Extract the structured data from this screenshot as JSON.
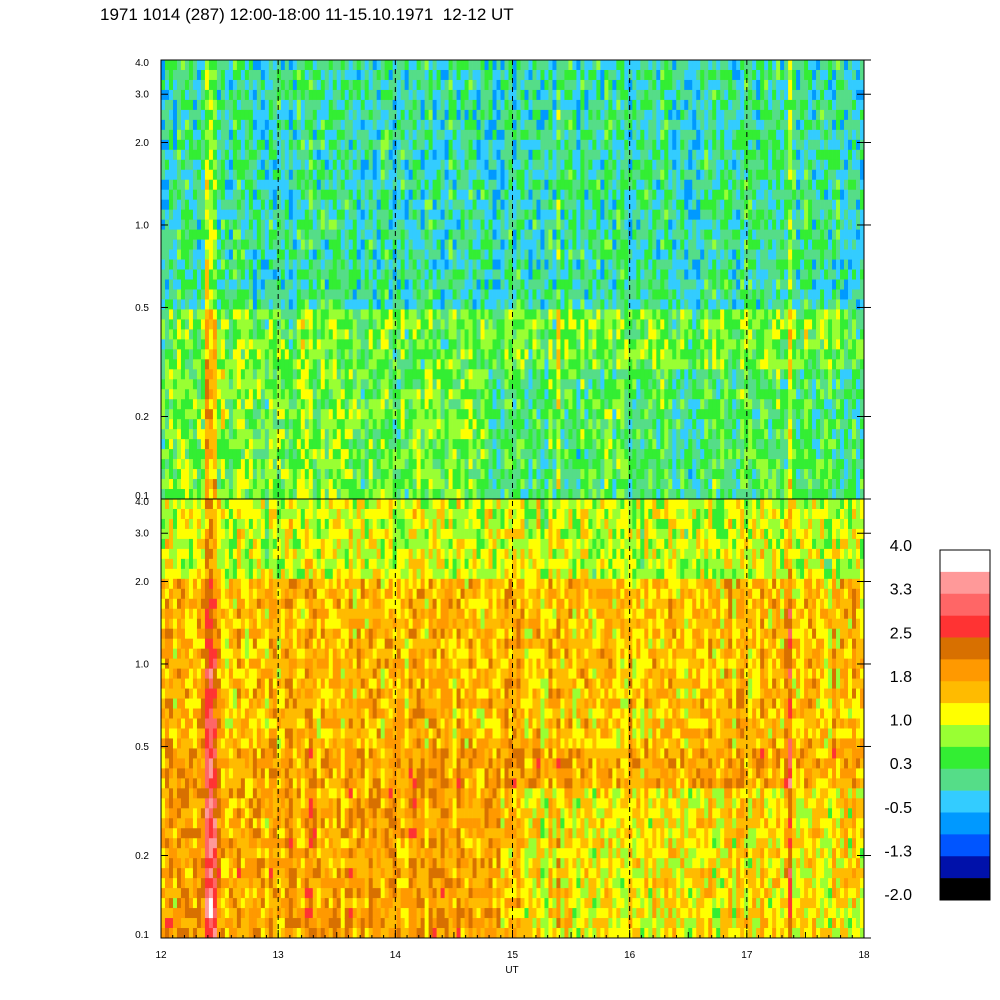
{
  "title": "1971 1014 (287) 12:00-18:00 11-15.10.1971  12-12 UT",
  "chart_data": {
    "type": "heatmap",
    "xlabel": "UT",
    "x_ticks": [
      "12",
      "13",
      "14",
      "15",
      "16",
      "17",
      "18"
    ],
    "xlim": [
      12,
      18
    ],
    "y_scale": "log",
    "ylim": [
      0.1,
      4.0
    ],
    "y_ticks": [
      "0.1",
      "0.2",
      "0.5",
      "1.0",
      "2.0",
      "3.0",
      "4.0"
    ],
    "y_tick_values": [
      0.1,
      0.2,
      0.5,
      1.0,
      2.0,
      3.0,
      4.0
    ],
    "grid": "dashed vertical lines at each hour",
    "panels": [
      {
        "name": "upper",
        "dominant_levels": [
          {
            "y_range": [
              1.0,
              4.0
            ],
            "value": 0.0
          },
          {
            "y_range": [
              0.5,
              1.0
            ],
            "value": 0.0
          },
          {
            "y_range": [
              0.1,
              0.5
            ],
            "value": 0.6
          }
        ]
      },
      {
        "name": "lower",
        "dominant_levels": [
          {
            "y_range": [
              2.0,
              4.0
            ],
            "value": 1.0
          },
          {
            "y_range": [
              0.5,
              2.0
            ],
            "value": 1.6
          },
          {
            "y_range": [
              0.1,
              0.5
            ],
            "value": 1.8
          }
        ]
      }
    ],
    "colorbar": {
      "labels": [
        "4.0",
        "3.3",
        "2.5",
        "1.8",
        "1.0",
        "0.3",
        "-0.5",
        "-1.3",
        "-2.0"
      ],
      "range": [
        -2.0,
        4.0
      ],
      "colors": [
        "#ffffff",
        "#ff9999",
        "#ff6666",
        "#ff3333",
        "#d87000",
        "#ff9900",
        "#ffbb00",
        "#ffff00",
        "#99ff33",
        "#33ee33",
        "#55dd88",
        "#33ccff",
        "#0099ff",
        "#0055ff",
        "#0011aa",
        "#000000"
      ]
    }
  }
}
